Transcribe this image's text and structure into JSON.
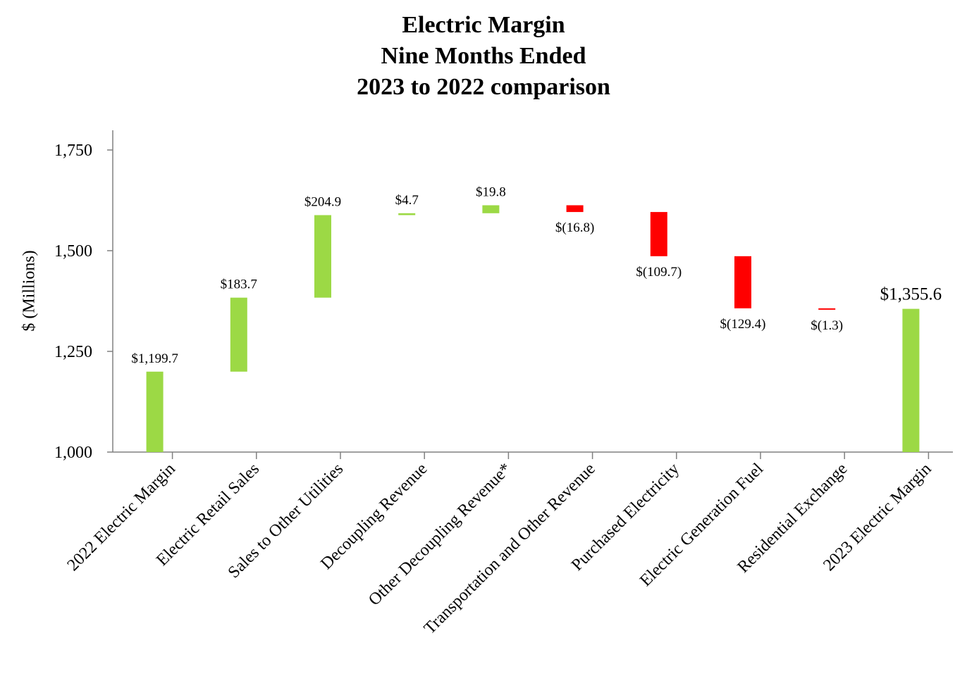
{
  "chart_data": {
    "type": "waterfall",
    "title_lines": [
      "Electric Margin",
      "Nine Months Ended",
      "2023 to 2022 comparison"
    ],
    "xlabel": "",
    "ylabel": "$ (Millions)",
    "ylim": [
      1000,
      1800
    ],
    "yticks": [
      1000,
      1250,
      1500,
      1750
    ],
    "ytick_labels": [
      "1,000",
      "1,250",
      "1,500",
      "1,750"
    ],
    "grid": false,
    "colors": {
      "increase": "#9cd945",
      "decrease": "#ff0000",
      "total": "#9cd945"
    },
    "categories": [
      "2022 Electric Margin",
      "Electric Retail Sales",
      "Sales to Other Utilities",
      "Decoupling Revenue",
      "Other Decoupling Revenue*",
      "Transportation and Other Revenue",
      "Purchased Electricity",
      "Electric Generation Fuel",
      "Residential Exchange",
      "2023 Electric Margin"
    ],
    "values": [
      1199.7,
      183.7,
      204.9,
      4.7,
      19.8,
      -16.8,
      -109.7,
      -129.4,
      -1.3,
      1355.6
    ],
    "kinds": [
      "total",
      "delta",
      "delta",
      "delta",
      "delta",
      "delta",
      "delta",
      "delta",
      "delta",
      "total"
    ],
    "data_labels": [
      "$1,199.7",
      "$183.7",
      "$204.9",
      "$4.7",
      "$19.8",
      "$(16.8)",
      "$(109.7)",
      "$(129.4)",
      "$(1.3)",
      "$1,355.6"
    ]
  }
}
